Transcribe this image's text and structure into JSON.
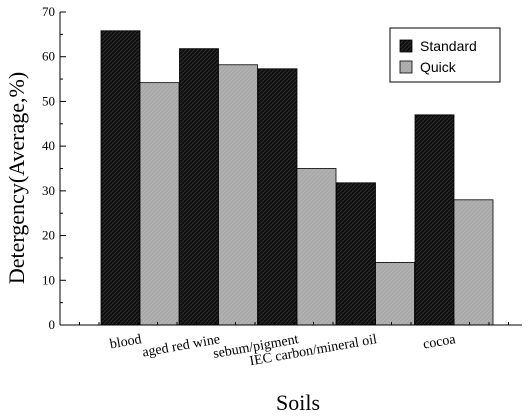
{
  "chart_data": {
    "type": "bar",
    "categories": [
      "blood",
      "aged red wine",
      "sebum/pigment",
      "IEC carbon/mineral oil",
      "cocoa"
    ],
    "series": [
      {
        "name": "Standard",
        "values": [
          65.8,
          61.8,
          57.3,
          31.8,
          47.0
        ],
        "color": "#111111"
      },
      {
        "name": "Quick",
        "values": [
          54.2,
          58.2,
          35.0,
          14.0,
          28.0
        ],
        "color": "#a9a9a9"
      }
    ],
    "xlabel": "Soils",
    "ylabel": "Detergency(Average,%)",
    "ylim": [
      0,
      70
    ],
    "yticks": [
      0,
      10,
      20,
      30,
      40,
      50,
      60,
      70
    ],
    "grid": false,
    "legend_position": "top-right"
  }
}
